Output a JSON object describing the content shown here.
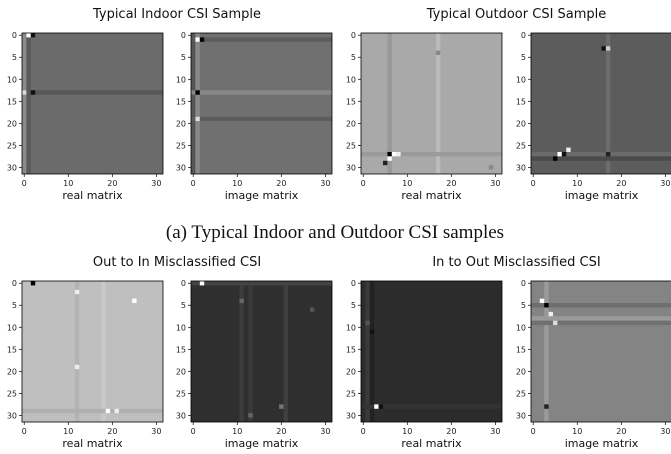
{
  "rows": [
    {
      "panels": [
        {
          "title": "Typical Indoor CSI Sample",
          "subplots": [
            {
              "xlabel": "real matrix"
            },
            {
              "xlabel": "image matrix"
            }
          ]
        },
        {
          "title": "Typical Outdoor CSI Sample",
          "subplots": [
            {
              "xlabel": "real matrix"
            },
            {
              "xlabel": "image matrix"
            }
          ]
        }
      ],
      "caption": "(a) Typical Indoor and Outdoor CSI samples"
    },
    {
      "panels": [
        {
          "title": "Out to In Misclassified CSI",
          "subplots": [
            {
              "xlabel": "real matrix"
            },
            {
              "xlabel": "image matrix"
            }
          ]
        },
        {
          "title": "In to Out Misclassified CSI",
          "subplots": [
            {
              "xlabel": "real matrix"
            },
            {
              "xlabel": "image matrix"
            }
          ]
        }
      ]
    }
  ],
  "xticks": [
    0,
    10,
    20,
    30
  ],
  "yticks": [
    0,
    5,
    10,
    15,
    20,
    25,
    30
  ]
}
